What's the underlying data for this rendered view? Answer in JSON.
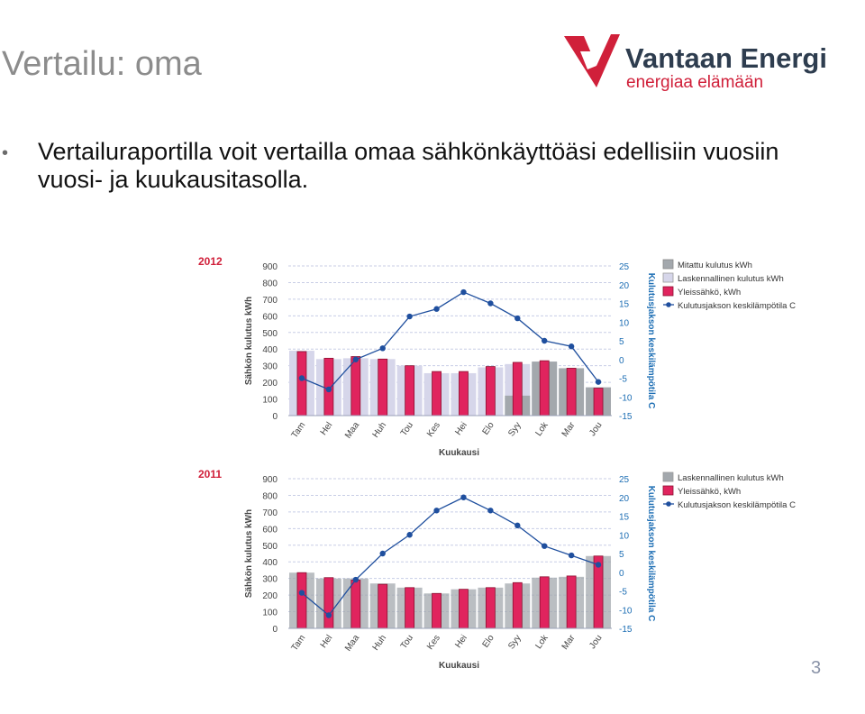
{
  "title": "Vertailu: oma",
  "bullet": "Vertailuraportilla voit vertailla omaa sähkönkäyttöäsi edellisiin vuosiin vuosi- ja kuukausitasolla.",
  "logo": {
    "name": "Vantaan Energia",
    "tagline": "energiaa elämään"
  },
  "page_number": "3",
  "colors": {
    "red": "#e0245e",
    "blue": "#1f4f9e",
    "measured": "#a3a8ad",
    "calculated": "#d6d6ea",
    "title_red": "#d0203a",
    "right_axis_text": "#1d6eb4"
  },
  "chart_data": [
    {
      "type": "bar",
      "year": "2012",
      "categories": [
        "Tam",
        "Hel",
        "Maa",
        "Huh",
        "Tou",
        "Kes",
        "Hei",
        "Elo",
        "Syy",
        "Lok",
        "Mar",
        "Jou"
      ],
      "ylabel": "Sähkön kulutus kWh",
      "y2label": "Kulutusjakson keskilämpötila C",
      "xlabel": "Kuukausi",
      "ylim": [
        0,
        900
      ],
      "y2lim": [
        -15,
        25
      ],
      "yticks": [
        "0",
        "100",
        "200",
        "300",
        "400",
        "500",
        "600",
        "700",
        "800",
        "900"
      ],
      "y2ticks": [
        "-15",
        "-10",
        "-5",
        "0",
        "5",
        "10",
        "15",
        "20",
        "25"
      ],
      "legend": [
        "Mitattu kulutus kWh",
        "Laskennallinen kulutus kWh",
        "Yleissähkö, kWh",
        "Kulutusjakson keskilämpötila C"
      ],
      "series": [
        {
          "name": "Mitattu kulutus kWh",
          "values": [
            0,
            0,
            0,
            0,
            0,
            0,
            0,
            0,
            120,
            325,
            285,
            170
          ]
        },
        {
          "name": "Laskennallinen kulutus kWh",
          "values": [
            390,
            340,
            345,
            340,
            300,
            255,
            255,
            290,
            310,
            320,
            280,
            170
          ]
        },
        {
          "name": "Yleissähkö, kWh",
          "values": [
            385,
            345,
            355,
            340,
            300,
            265,
            265,
            295,
            320,
            330,
            285,
            165
          ]
        },
        {
          "name": "Kulutusjakson keskilämpötila C",
          "values": [
            -5,
            -8,
            0,
            3,
            11.5,
            13.5,
            18,
            15,
            11,
            5,
            3.5,
            -6
          ]
        }
      ]
    },
    {
      "type": "bar",
      "year": "2011",
      "categories": [
        "Tam",
        "Hel",
        "Maa",
        "Huh",
        "Tou",
        "Kes",
        "Hei",
        "Elo",
        "Syy",
        "Lok",
        "Mar",
        "Jou"
      ],
      "ylabel": "Sähkön kulutus kWh",
      "y2label": "Kulutusjakson keskilämpötila C",
      "xlabel": "Kuukausi",
      "ylim": [
        0,
        900
      ],
      "y2lim": [
        -15,
        25
      ],
      "yticks": [
        "0",
        "100",
        "200",
        "300",
        "400",
        "500",
        "600",
        "700",
        "800",
        "900"
      ],
      "y2ticks": [
        "-15",
        "-10",
        "-5",
        "0",
        "5",
        "10",
        "15",
        "20",
        "25"
      ],
      "legend": [
        "Laskennallinen kulutus kWh",
        "Yleissähkö, kWh",
        "Kulutusjakson keskilämpötila C"
      ],
      "series": [
        {
          "name": "Laskennallinen kulutus kWh",
          "values": [
            335,
            300,
            300,
            270,
            245,
            210,
            235,
            245,
            270,
            305,
            310,
            435
          ]
        },
        {
          "name": "Yleissähkö, kWh",
          "values": [
            335,
            305,
            290,
            265,
            245,
            210,
            235,
            245,
            275,
            310,
            315,
            435
          ]
        },
        {
          "name": "Kulutusjakson keskilämpötila C",
          "values": [
            -5.5,
            -11.5,
            -2,
            5,
            10,
            16.5,
            20,
            16.5,
            12.5,
            7,
            4.5,
            2
          ]
        }
      ]
    }
  ]
}
